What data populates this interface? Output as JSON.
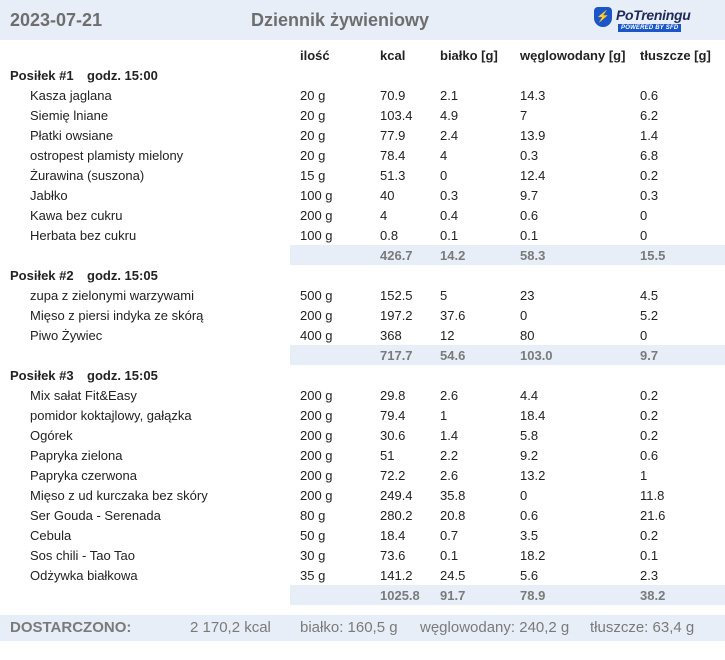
{
  "header": {
    "date": "2023-07-21",
    "title": "Dziennik żywieniowy",
    "logo_name": "PoTreningu",
    "logo_tagline": "POWERED BY SFD"
  },
  "columns": {
    "qty": "ilość",
    "kcal": "kcal",
    "protein": "białko [g]",
    "carbs": "węglowodany [g]",
    "fat": "tłuszcze [g]"
  },
  "meals": [
    {
      "label": "Posiłek #1",
      "time": "godz. 15:00",
      "items": [
        {
          "name": "Kasza jaglana",
          "qty": "20 g",
          "kcal": "70.9",
          "protein": "2.1",
          "carbs": "14.3",
          "fat": "0.6"
        },
        {
          "name": "Siemię lniane",
          "qty": "20 g",
          "kcal": "103.4",
          "protein": "4.9",
          "carbs": "7",
          "fat": "6.2"
        },
        {
          "name": "Płatki owsiane",
          "qty": "20 g",
          "kcal": "77.9",
          "protein": "2.4",
          "carbs": "13.9",
          "fat": "1.4"
        },
        {
          "name": "ostropest plamisty mielony",
          "qty": "20 g",
          "kcal": "78.4",
          "protein": "4",
          "carbs": "0.3",
          "fat": "6.8"
        },
        {
          "name": "Żurawina (suszona)",
          "qty": "15 g",
          "kcal": "51.3",
          "protein": "0",
          "carbs": "12.4",
          "fat": "0.2"
        },
        {
          "name": "Jabłko",
          "qty": "100 g",
          "kcal": "40",
          "protein": "0.3",
          "carbs": "9.7",
          "fat": "0.3"
        },
        {
          "name": "Kawa bez cukru",
          "qty": "200 g",
          "kcal": "4",
          "protein": "0.4",
          "carbs": "0.6",
          "fat": "0"
        },
        {
          "name": "Herbata bez cukru",
          "qty": "100 g",
          "kcal": "0.8",
          "protein": "0.1",
          "carbs": "0.1",
          "fat": "0"
        }
      ],
      "total": {
        "kcal": "426.7",
        "protein": "14.2",
        "carbs": "58.3",
        "fat": "15.5"
      }
    },
    {
      "label": "Posiłek #2",
      "time": "godz. 15:05",
      "items": [
        {
          "name": "zupa z zielonymi warzywami",
          "qty": "500 g",
          "kcal": "152.5",
          "protein": "5",
          "carbs": "23",
          "fat": "4.5"
        },
        {
          "name": "Mięso z piersi indyka ze skórą",
          "qty": "200 g",
          "kcal": "197.2",
          "protein": "37.6",
          "carbs": "0",
          "fat": "5.2"
        },
        {
          "name": "Piwo Żywiec",
          "qty": "400 g",
          "kcal": "368",
          "protein": "12",
          "carbs": "80",
          "fat": "0"
        }
      ],
      "total": {
        "kcal": "717.7",
        "protein": "54.6",
        "carbs": "103.0",
        "fat": "9.7"
      }
    },
    {
      "label": "Posiłek #3",
      "time": "godz. 15:05",
      "items": [
        {
          "name": "Mix sałat Fit&Easy",
          "qty": "200 g",
          "kcal": "29.8",
          "protein": "2.6",
          "carbs": "4.4",
          "fat": "0.2"
        },
        {
          "name": "pomidor koktajlowy, gałązka",
          "qty": "200 g",
          "kcal": "79.4",
          "protein": "1",
          "carbs": "18.4",
          "fat": "0.2"
        },
        {
          "name": "Ogórek",
          "qty": "200 g",
          "kcal": "30.6",
          "protein": "1.4",
          "carbs": "5.8",
          "fat": "0.2"
        },
        {
          "name": "Papryka zielona",
          "qty": "200 g",
          "kcal": "51",
          "protein": "2.2",
          "carbs": "9.2",
          "fat": "0.6"
        },
        {
          "name": "Papryka czerwona",
          "qty": "200 g",
          "kcal": "72.2",
          "protein": "2.6",
          "carbs": "13.2",
          "fat": "1"
        },
        {
          "name": "Mięso z ud kurczaka bez skóry",
          "qty": "200 g",
          "kcal": "249.4",
          "protein": "35.8",
          "carbs": "0",
          "fat": "11.8"
        },
        {
          "name": "Ser Gouda - Serenada",
          "qty": "80 g",
          "kcal": "280.2",
          "protein": "20.8",
          "carbs": "0.6",
          "fat": "21.6"
        },
        {
          "name": "Cebula",
          "qty": "50 g",
          "kcal": "18.4",
          "protein": "0.7",
          "carbs": "3.5",
          "fat": "0.2"
        },
        {
          "name": "Sos chili - Tao Tao",
          "qty": "30 g",
          "kcal": "73.6",
          "protein": "0.1",
          "carbs": "18.2",
          "fat": "0.1"
        },
        {
          "name": "Odżywka białkowa",
          "qty": "35 g",
          "kcal": "141.2",
          "protein": "24.5",
          "carbs": "5.6",
          "fat": "2.3"
        }
      ],
      "total": {
        "kcal": "1025.8",
        "protein": "91.7",
        "carbs": "78.9",
        "fat": "38.2"
      }
    }
  ],
  "summary": {
    "label": "DOSTARCZONO:",
    "kcal": "2 170,2 kcal",
    "protein": "białko: 160,5 g",
    "carbs": "węglowodany: 240,2 g",
    "fat": "tłuszcze: 63,4 g"
  }
}
